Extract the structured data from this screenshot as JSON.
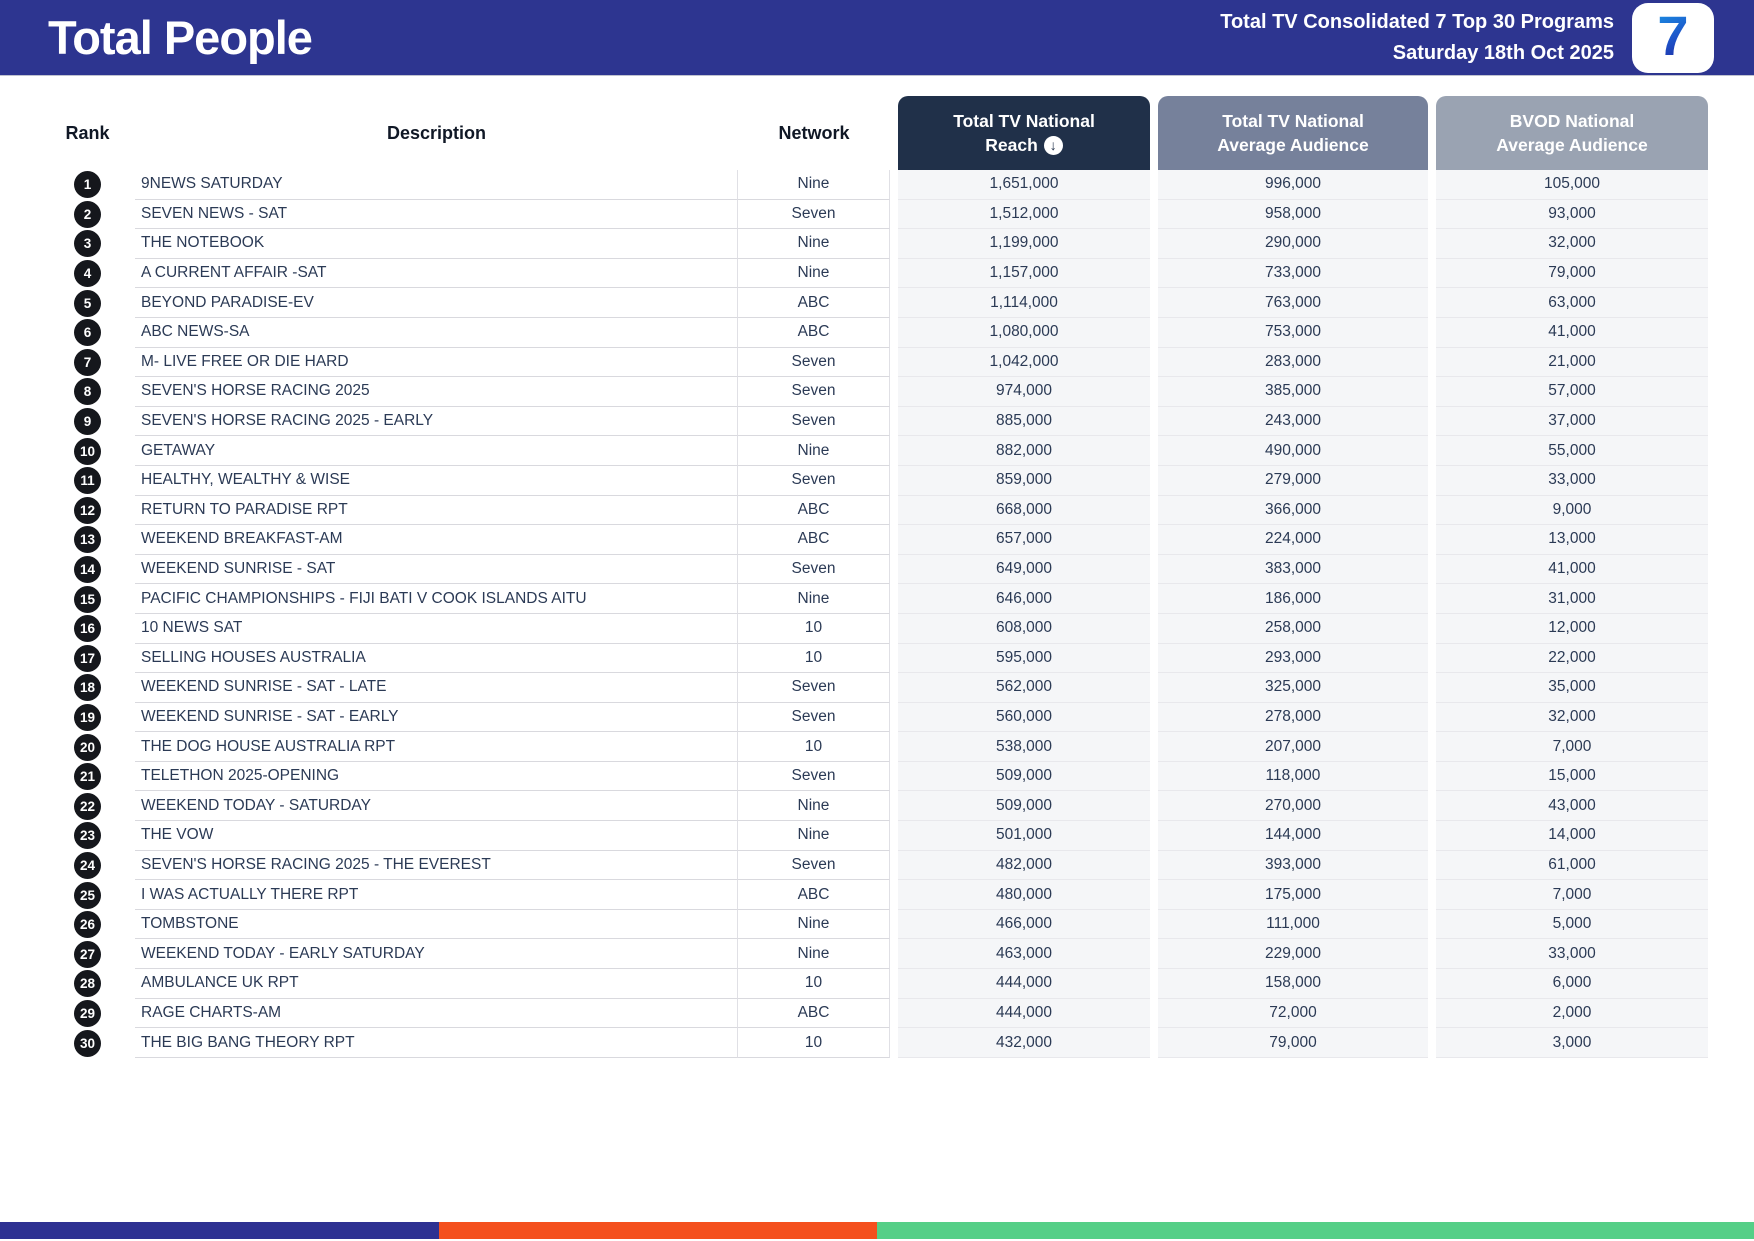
{
  "banner": {
    "title": "Total People",
    "subtitle_line1": "Total TV Consolidated 7 Top 30 Programs",
    "subtitle_line2": "Saturday 18th Oct 2025",
    "logo_text": "7"
  },
  "table": {
    "columns": {
      "rank": "Rank",
      "description": "Description",
      "network": "Network",
      "reach_line1": "Total TV National",
      "reach_line2": "Reach",
      "avg_line1": "Total TV National",
      "avg_line2": "Average Audience",
      "bvod_line1": "BVOD National",
      "bvod_line2": "Average Audience"
    },
    "sort_icon": "↓",
    "rows": [
      {
        "rank": "1",
        "description": "9NEWS SATURDAY",
        "network": "Nine",
        "reach": "1,651,000",
        "avg": "996,000",
        "bvod": "105,000"
      },
      {
        "rank": "2",
        "description": "SEVEN NEWS - SAT",
        "network": "Seven",
        "reach": "1,512,000",
        "avg": "958,000",
        "bvod": "93,000"
      },
      {
        "rank": "3",
        "description": "THE NOTEBOOK",
        "network": "Nine",
        "reach": "1,199,000",
        "avg": "290,000",
        "bvod": "32,000"
      },
      {
        "rank": "4",
        "description": "A CURRENT AFFAIR -SAT",
        "network": "Nine",
        "reach": "1,157,000",
        "avg": "733,000",
        "bvod": "79,000"
      },
      {
        "rank": "5",
        "description": "BEYOND PARADISE-EV",
        "network": "ABC",
        "reach": "1,114,000",
        "avg": "763,000",
        "bvod": "63,000"
      },
      {
        "rank": "6",
        "description": "ABC NEWS-SA",
        "network": "ABC",
        "reach": "1,080,000",
        "avg": "753,000",
        "bvod": "41,000"
      },
      {
        "rank": "7",
        "description": "M- LIVE FREE OR DIE HARD",
        "network": "Seven",
        "reach": "1,042,000",
        "avg": "283,000",
        "bvod": "21,000"
      },
      {
        "rank": "8",
        "description": "SEVEN'S HORSE RACING 2025",
        "network": "Seven",
        "reach": "974,000",
        "avg": "385,000",
        "bvod": "57,000"
      },
      {
        "rank": "9",
        "description": "SEVEN'S HORSE RACING 2025 - EARLY",
        "network": "Seven",
        "reach": "885,000",
        "avg": "243,000",
        "bvod": "37,000"
      },
      {
        "rank": "10",
        "description": "GETAWAY",
        "network": "Nine",
        "reach": "882,000",
        "avg": "490,000",
        "bvod": "55,000"
      },
      {
        "rank": "11",
        "description": "HEALTHY, WEALTHY & WISE",
        "network": "Seven",
        "reach": "859,000",
        "avg": "279,000",
        "bvod": "33,000"
      },
      {
        "rank": "12",
        "description": "RETURN TO PARADISE RPT",
        "network": "ABC",
        "reach": "668,000",
        "avg": "366,000",
        "bvod": "9,000"
      },
      {
        "rank": "13",
        "description": "WEEKEND BREAKFAST-AM",
        "network": "ABC",
        "reach": "657,000",
        "avg": "224,000",
        "bvod": "13,000"
      },
      {
        "rank": "14",
        "description": "WEEKEND SUNRISE - SAT",
        "network": "Seven",
        "reach": "649,000",
        "avg": "383,000",
        "bvod": "41,000"
      },
      {
        "rank": "15",
        "description": "PACIFIC CHAMPIONSHIPS - FIJI BATI V COOK ISLANDS AITU",
        "network": "Nine",
        "reach": "646,000",
        "avg": "186,000",
        "bvod": "31,000"
      },
      {
        "rank": "16",
        "description": "10 NEWS SAT",
        "network": "10",
        "reach": "608,000",
        "avg": "258,000",
        "bvod": "12,000"
      },
      {
        "rank": "17",
        "description": "SELLING HOUSES AUSTRALIA",
        "network": "10",
        "reach": "595,000",
        "avg": "293,000",
        "bvod": "22,000"
      },
      {
        "rank": "18",
        "description": "WEEKEND SUNRISE - SAT - LATE",
        "network": "Seven",
        "reach": "562,000",
        "avg": "325,000",
        "bvod": "35,000"
      },
      {
        "rank": "19",
        "description": "WEEKEND SUNRISE - SAT - EARLY",
        "network": "Seven",
        "reach": "560,000",
        "avg": "278,000",
        "bvod": "32,000"
      },
      {
        "rank": "20",
        "description": "THE DOG HOUSE AUSTRALIA RPT",
        "network": "10",
        "reach": "538,000",
        "avg": "207,000",
        "bvod": "7,000"
      },
      {
        "rank": "21",
        "description": "TELETHON 2025-OPENING",
        "network": "Seven",
        "reach": "509,000",
        "avg": "118,000",
        "bvod": "15,000"
      },
      {
        "rank": "22",
        "description": "WEEKEND TODAY - SATURDAY",
        "network": "Nine",
        "reach": "509,000",
        "avg": "270,000",
        "bvod": "43,000"
      },
      {
        "rank": "23",
        "description": "THE VOW",
        "network": "Nine",
        "reach": "501,000",
        "avg": "144,000",
        "bvod": "14,000"
      },
      {
        "rank": "24",
        "description": "SEVEN'S HORSE RACING 2025 - THE EVEREST",
        "network": "Seven",
        "reach": "482,000",
        "avg": "393,000",
        "bvod": "61,000"
      },
      {
        "rank": "25",
        "description": "I WAS ACTUALLY THERE RPT",
        "network": "ABC",
        "reach": "480,000",
        "avg": "175,000",
        "bvod": "7,000"
      },
      {
        "rank": "26",
        "description": "TOMBSTONE",
        "network": "Nine",
        "reach": "466,000",
        "avg": "111,000",
        "bvod": "5,000"
      },
      {
        "rank": "27",
        "description": "WEEKEND TODAY - EARLY SATURDAY",
        "network": "Nine",
        "reach": "463,000",
        "avg": "229,000",
        "bvod": "33,000"
      },
      {
        "rank": "28",
        "description": "AMBULANCE UK RPT",
        "network": "10",
        "reach": "444,000",
        "avg": "158,000",
        "bvod": "6,000"
      },
      {
        "rank": "29",
        "description": "RAGE CHARTS-AM",
        "network": "ABC",
        "reach": "444,000",
        "avg": "72,000",
        "bvod": "2,000"
      },
      {
        "rank": "30",
        "description": "THE BIG BANG THEORY RPT",
        "network": "10",
        "reach": "432,000",
        "avg": "79,000",
        "bvod": "3,000"
      }
    ]
  },
  "colors": {
    "banner_blue": "#2d3590",
    "reach_header_navy": "#203049",
    "avg_header_gray": "#76819b",
    "bvod_header_gray": "#9aa3b2",
    "bar_blue": "#2e3192",
    "bar_orange": "#f4501e",
    "bar_green": "#55cf87"
  }
}
